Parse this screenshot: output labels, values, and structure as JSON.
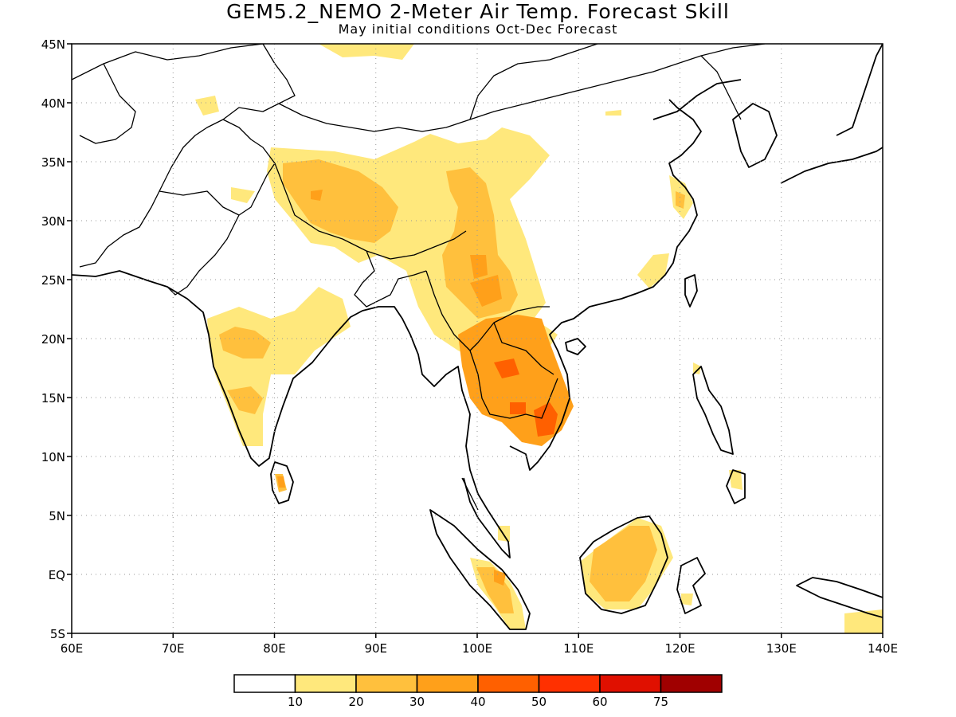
{
  "title": "GEM5.2_NEMO 2-Meter Air Temp. Forecast Skill",
  "subtitle": "May initial conditions  Oct-Dec Forecast",
  "map": {
    "lon_range": [
      60,
      140
    ],
    "lat_range": [
      -5,
      45
    ],
    "x_ticks": [
      {
        "v": 60,
        "label": "60E"
      },
      {
        "v": 70,
        "label": "70E"
      },
      {
        "v": 80,
        "label": "80E"
      },
      {
        "v": 90,
        "label": "90E"
      },
      {
        "v": 100,
        "label": "100E"
      },
      {
        "v": 110,
        "label": "110E"
      },
      {
        "v": 120,
        "label": "120E"
      },
      {
        "v": 130,
        "label": "130E"
      },
      {
        "v": 140,
        "label": "140E"
      }
    ],
    "y_ticks": [
      {
        "v": 45,
        "label": "45N"
      },
      {
        "v": 40,
        "label": "40N"
      },
      {
        "v": 35,
        "label": "35N"
      },
      {
        "v": 30,
        "label": "30N"
      },
      {
        "v": 25,
        "label": "25N"
      },
      {
        "v": 20,
        "label": "20N"
      },
      {
        "v": 15,
        "label": "15N"
      },
      {
        "v": 10,
        "label": "10N"
      },
      {
        "v": 5,
        "label": "5N"
      },
      {
        "v": 0,
        "label": "EQ"
      },
      {
        "v": -5,
        "label": "5S"
      }
    ],
    "grid": "dotted"
  },
  "colorbar": {
    "colors": [
      "#ffffff",
      "#ffe87c",
      "#ffc03d",
      "#ffa01a",
      "#ff6000",
      "#ff3000",
      "#e01000",
      "#a00000"
    ],
    "labels": [
      "10",
      "20",
      "30",
      "40",
      "50",
      "60",
      "75"
    ]
  },
  "chart_data": {
    "type": "heatmap",
    "title": "GEM5.2_NEMO 2-Meter Air Temp. Forecast Skill",
    "subtitle": "May initial conditions  Oct-Dec Forecast",
    "x_range": [
      60,
      140
    ],
    "y_range": [
      -5,
      45
    ],
    "levels": [
      10,
      20,
      30,
      40,
      50,
      60,
      75
    ],
    "regions": [
      {
        "region": "Tibetan Plateau",
        "level": "20-30"
      },
      {
        "region": "Yunnan / Sichuan",
        "level": "20-30"
      },
      {
        "region": "Central India",
        "level": "10-20"
      },
      {
        "region": "Indochina (Thailand, Laos)",
        "level": "30-40"
      },
      {
        "region": "Cambodia / southern Vietnam",
        "level": "40-50"
      },
      {
        "region": "Borneo",
        "level": "20-30"
      },
      {
        "region": "Sumatra",
        "level": "20-30"
      },
      {
        "region": "Sri Lanka",
        "level": "30-40"
      },
      {
        "region": "Eastern China coast",
        "level": "10-20"
      }
    ]
  }
}
